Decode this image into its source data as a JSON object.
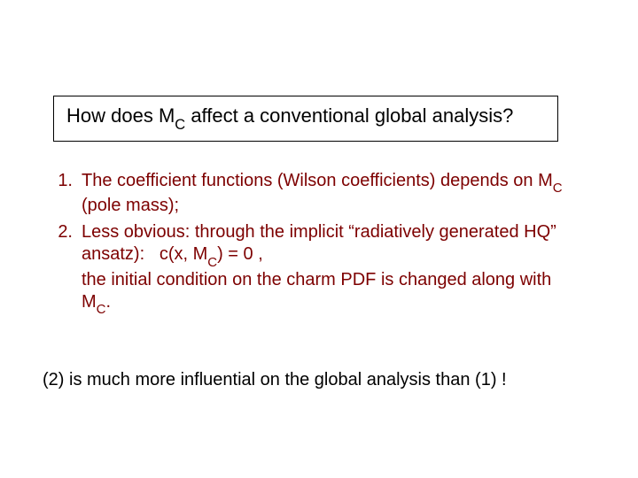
{
  "colors": {
    "background": "#ffffff",
    "title_border": "#000000",
    "title_text": "#000000",
    "list_text": "#7d0000",
    "closing_text": "#000000"
  },
  "typography": {
    "title_family": "Arial",
    "body_family": "Comic Sans MS",
    "title_fontsize_pt": 22,
    "body_fontsize_pt": 20
  },
  "title": {
    "pre": "How does M",
    "sub1": "C",
    "post": " affect a conventional global analysis?"
  },
  "items": [
    {
      "num": "1.",
      "a": "The coefficient functions (Wilson coefficients) depends on M",
      "sub": "C",
      "b": " (pole mass);"
    },
    {
      "num": "2.",
      "a": "Less obvious: through the implicit “radiatively generated HQ” ansatz):   c(x, M",
      "sub": "C",
      "b": ") = 0 ,",
      "c": "the initial condition on the charm PDF is changed along with M",
      "sub2": "C",
      "d": "."
    }
  ],
  "closing": "(2) is much more influential on the global analysis than (1) !"
}
